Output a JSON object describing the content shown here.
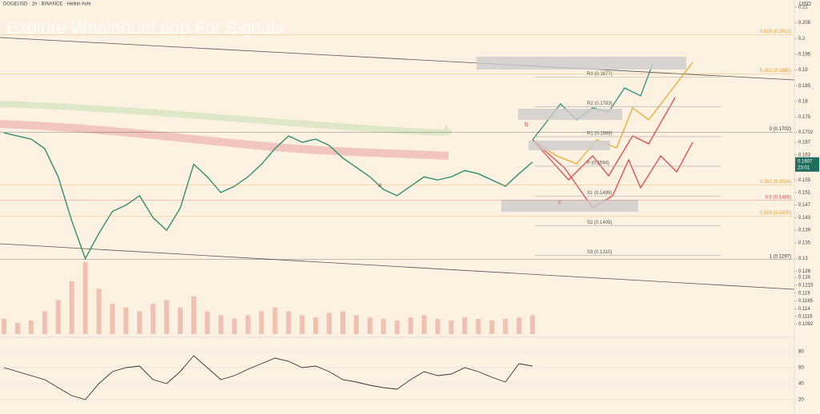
{
  "header": {
    "title": "DOGEUSD · 1h · BINANCE · Heikin Ashi",
    "watermark": "Explore Whalehunt.app For Signals",
    "currency": "USD"
  },
  "chart_data": {
    "type": "line",
    "series": [
      {
        "name": "price",
        "color": "#2f8f6f",
        "values": [
          0.17,
          0.169,
          0.168,
          0.165,
          0.156,
          0.142,
          0.13,
          0.138,
          0.145,
          0.147,
          0.15,
          0.143,
          0.139,
          0.146,
          0.16,
          0.156,
          0.151,
          0.153,
          0.156,
          0.16,
          0.165,
          0.169,
          0.167,
          0.168,
          0.166,
          0.162,
          0.159,
          0.156,
          0.152,
          0.15,
          0.153,
          0.156,
          0.155,
          0.156,
          0.158,
          0.157,
          0.155,
          0.153,
          0.157,
          0.1607
        ]
      }
    ],
    "volume": {
      "color": "#e8a090",
      "values": [
        20,
        15,
        18,
        30,
        45,
        70,
        95,
        60,
        40,
        35,
        30,
        40,
        45,
        35,
        50,
        30,
        25,
        20,
        25,
        30,
        35,
        30,
        25,
        22,
        28,
        30,
        25,
        22,
        20,
        18,
        22,
        25,
        20,
        18,
        22,
        20,
        18,
        20,
        22,
        25
      ]
    },
    "rsi": {
      "color": "#333333",
      "ylim": [
        10,
        90
      ],
      "yticks": [
        80,
        60,
        40,
        20
      ],
      "values": [
        60,
        55,
        50,
        45,
        35,
        25,
        20,
        40,
        55,
        60,
        62,
        45,
        40,
        55,
        75,
        60,
        45,
        50,
        58,
        65,
        72,
        68,
        60,
        62,
        55,
        45,
        42,
        38,
        35,
        33,
        45,
        55,
        50,
        52,
        60,
        55,
        48,
        42,
        65,
        62
      ]
    },
    "ylim": [
      0.108,
      0.211
    ],
    "yticks": [
      0.21,
      0.205,
      0.2,
      0.195,
      0.19,
      0.185,
      0.18,
      0.175,
      0.1702,
      0.167,
      0.163,
      0.159,
      0.155,
      0.151,
      0.147,
      0.143,
      0.139,
      0.135,
      0.13,
      0.126,
      0.124,
      0.1215,
      0.119,
      0.1165,
      0.114,
      0.1116,
      0.1092
    ],
    "last_price": 0.1607,
    "countdown": "23:01",
    "pivots": [
      {
        "label": "R3 (0.1877)",
        "value": 0.1877
      },
      {
        "label": "R2 (0.1783)",
        "value": 0.1783
      },
      {
        "label": "R1 (0.1688)",
        "value": 0.1688
      },
      {
        "label": "P (0.1594)",
        "value": 0.1594
      },
      {
        "label": "S1 (0.1499)",
        "value": 0.1499
      },
      {
        "label": "S2 (0.1405)",
        "value": 0.1405
      },
      {
        "label": "S3 (0.1310)",
        "value": 0.131
      }
    ],
    "fibs": [
      {
        "label": "0.618 (0.2012)",
        "value": 0.2012,
        "color": "#e0a030"
      },
      {
        "label": "0.382 (0.1888)",
        "value": 0.1888,
        "color": "#e0a030"
      },
      {
        "label": "0 (0.1702)",
        "value": 0.1702,
        "color": "#333333"
      },
      {
        "label": "0.382 (0.1534)",
        "value": 0.1534,
        "color": "#e0a030"
      },
      {
        "label": "0.5 (0.1485)",
        "value": 0.1485,
        "color": "#d05050"
      },
      {
        "label": "0.618 (0.1435)",
        "value": 0.1435,
        "color": "#e0a030"
      },
      {
        "label": "1 (0.1297)",
        "value": 0.1297,
        "color": "#333333"
      }
    ],
    "wave_labels": [
      "a",
      "b",
      "c"
    ]
  }
}
